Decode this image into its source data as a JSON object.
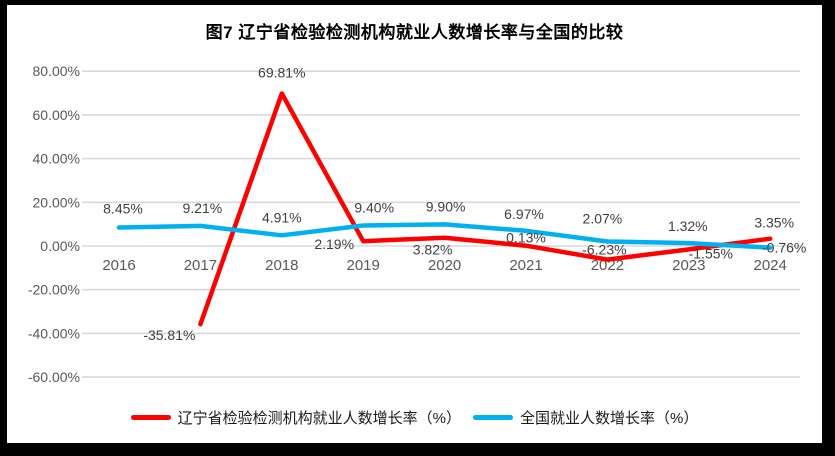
{
  "title": "图7  辽宁省检验检测机构就业人数增长率与全国的比较",
  "colors": {
    "liaoning_line": "#fe0000",
    "national_line": "#00b0f0",
    "gridline": "#d9d9d9",
    "axis_text": "#595959",
    "data_label_text": "#3f3f3f",
    "frame": "#000000",
    "background": "#ffffff"
  },
  "legend": [
    {
      "name": "辽宁省检验检测机构就业人数增长率（%）",
      "color_key": "liaoning_line"
    },
    {
      "name": "全国就业人数增长率（%）",
      "color_key": "national_line"
    }
  ],
  "chart_data": {
    "type": "line",
    "categories": [
      "2016",
      "2017",
      "2018",
      "2019",
      "2020",
      "2021",
      "2022",
      "2023",
      "2024"
    ],
    "series": [
      {
        "name": "辽宁省检验检测机构就业人数增长率（%）",
        "color_key": "liaoning_line",
        "values": [
          null,
          -35.81,
          69.81,
          2.19,
          3.82,
          0.13,
          -6.23,
          -1.55,
          3.35
        ],
        "labels": [
          "",
          "-35.81%",
          "69.81%",
          "2.19%",
          "3.82%",
          "0.13%",
          "-6.23%",
          "-1.55%",
          "3.35%"
        ],
        "label_offsets": [
          [
            0,
            0
          ],
          [
            -31,
            16
          ],
          [
            0,
            -16
          ],
          [
            -29,
            8
          ],
          [
            -12,
            17
          ],
          [
            0,
            -3
          ],
          [
            -3,
            -5
          ],
          [
            22,
            9
          ],
          [
            4,
            -11
          ]
        ]
      },
      {
        "name": "全国就业人数增长率（%）",
        "color_key": "national_line",
        "values": [
          8.45,
          9.21,
          4.91,
          9.4,
          9.9,
          6.97,
          2.07,
          1.32,
          -0.76
        ],
        "labels": [
          "8.45%",
          "9.21%",
          "4.91%",
          "9.40%",
          "9.90%",
          "6.97%",
          "2.07%",
          "1.32%",
          "-0.76%"
        ],
        "label_offsets": [
          [
            4,
            -14
          ],
          [
            2,
            -13
          ],
          [
            0,
            -13
          ],
          [
            11,
            -13
          ],
          [
            1,
            -13
          ],
          [
            -2,
            -12
          ],
          [
            -5,
            -18
          ],
          [
            -1,
            -12
          ],
          [
            14,
            5
          ]
        ]
      }
    ],
    "ylim": [
      -60,
      80
    ],
    "ytick_step": 20,
    "ytick_labels": [
      "80.00%",
      "60.00%",
      "40.00%",
      "20.00%",
      "0.00%",
      "-20.00%",
      "-40.00%",
      "-60.00%"
    ],
    "xlabel": "",
    "ylabel": "",
    "grid": true,
    "legend_position": "bottom"
  }
}
